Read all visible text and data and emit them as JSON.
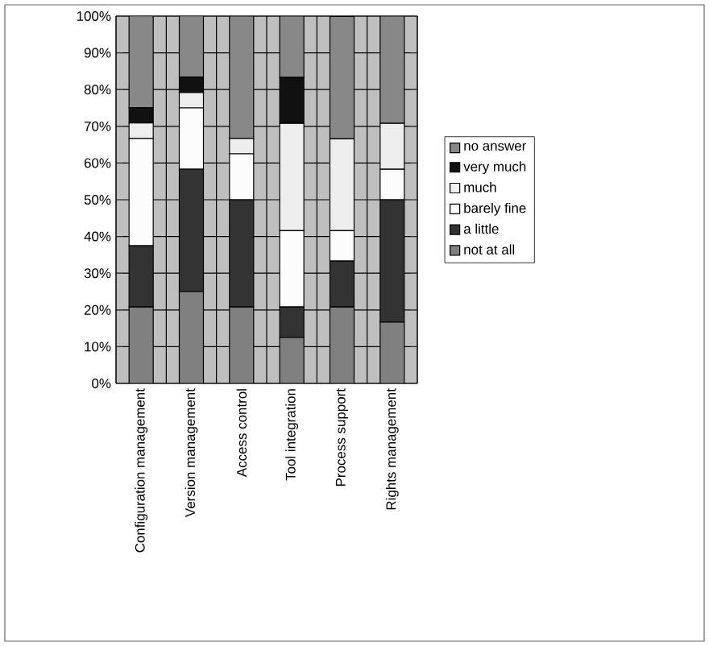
{
  "chart_data": {
    "type": "bar",
    "stacked": true,
    "categories": [
      "Configuration management",
      "Version management",
      "Access control",
      "Tool integration",
      "Process support",
      "Rights management"
    ],
    "series": [
      {
        "name": "not at all",
        "color": "#808080",
        "values": [
          20.8,
          25,
          20.8,
          12.5,
          20.8,
          16.7
        ]
      },
      {
        "name": "a little",
        "color": "#333333",
        "values": [
          16.7,
          33.3,
          29.2,
          8.3,
          12.5,
          33.3
        ]
      },
      {
        "name": "barely fine",
        "color": "#fcfcfc",
        "values": [
          29.2,
          16.7,
          12.5,
          20.8,
          8.3,
          8.3
        ]
      },
      {
        "name": "much",
        "color": "#eeeeee",
        "values": [
          4.2,
          4.2,
          4.2,
          29.2,
          25,
          12.5
        ]
      },
      {
        "name": "very much",
        "color": "#111111",
        "values": [
          4.2,
          4.2,
          0,
          12.5,
          0,
          0
        ]
      },
      {
        "name": "no answer",
        "color": "#888888",
        "values": [
          25,
          16.7,
          33.3,
          16.7,
          33.3,
          29.2
        ]
      }
    ],
    "ylim": [
      0,
      100
    ],
    "yticks": [
      {
        "value": 0,
        "label": "0%"
      },
      {
        "value": 10,
        "label": "10%"
      },
      {
        "value": 20,
        "label": "20%"
      },
      {
        "value": 30,
        "label": "30%"
      },
      {
        "value": 40,
        "label": "40%"
      },
      {
        "value": 50,
        "label": "50%"
      },
      {
        "value": 60,
        "label": "60%"
      },
      {
        "value": 70,
        "label": "70%"
      },
      {
        "value": 80,
        "label": "80%"
      },
      {
        "value": 90,
        "label": "90%"
      },
      {
        "value": 100,
        "label": "100%"
      }
    ],
    "grid": true,
    "legend": "right"
  }
}
